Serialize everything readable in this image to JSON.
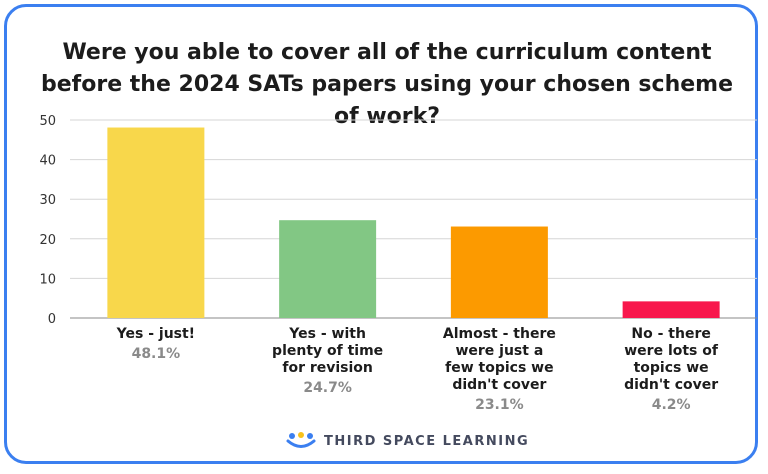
{
  "chart_data": {
    "type": "bar",
    "title": "Were you able to cover all of the curriculum content before the 2024 SATs papers using your chosen scheme of work?",
    "xlabel": "",
    "ylabel": "",
    "ylim": [
      0,
      50
    ],
    "yticks": [
      0,
      10,
      20,
      30,
      40,
      50
    ],
    "grid": true,
    "categories": [
      [
        "Yes - just!"
      ],
      [
        "Yes - with",
        "plenty of time",
        "for revision"
      ],
      [
        "Almost - there",
        "were just a",
        "few topics we",
        "didn't cover"
      ],
      [
        "No - there",
        "were lots of",
        "topics we",
        "didn't cover"
      ]
    ],
    "values": [
      48.1,
      24.7,
      23.1,
      4.2
    ],
    "value_labels": [
      "48.1%",
      "24.7%",
      "23.1%",
      "4.2%"
    ],
    "colors": [
      "#f8d74b",
      "#82c784",
      "#fc9a00",
      "#f8174c"
    ]
  },
  "branding": {
    "logo_text": "THIRD SPACE LEARNING"
  }
}
